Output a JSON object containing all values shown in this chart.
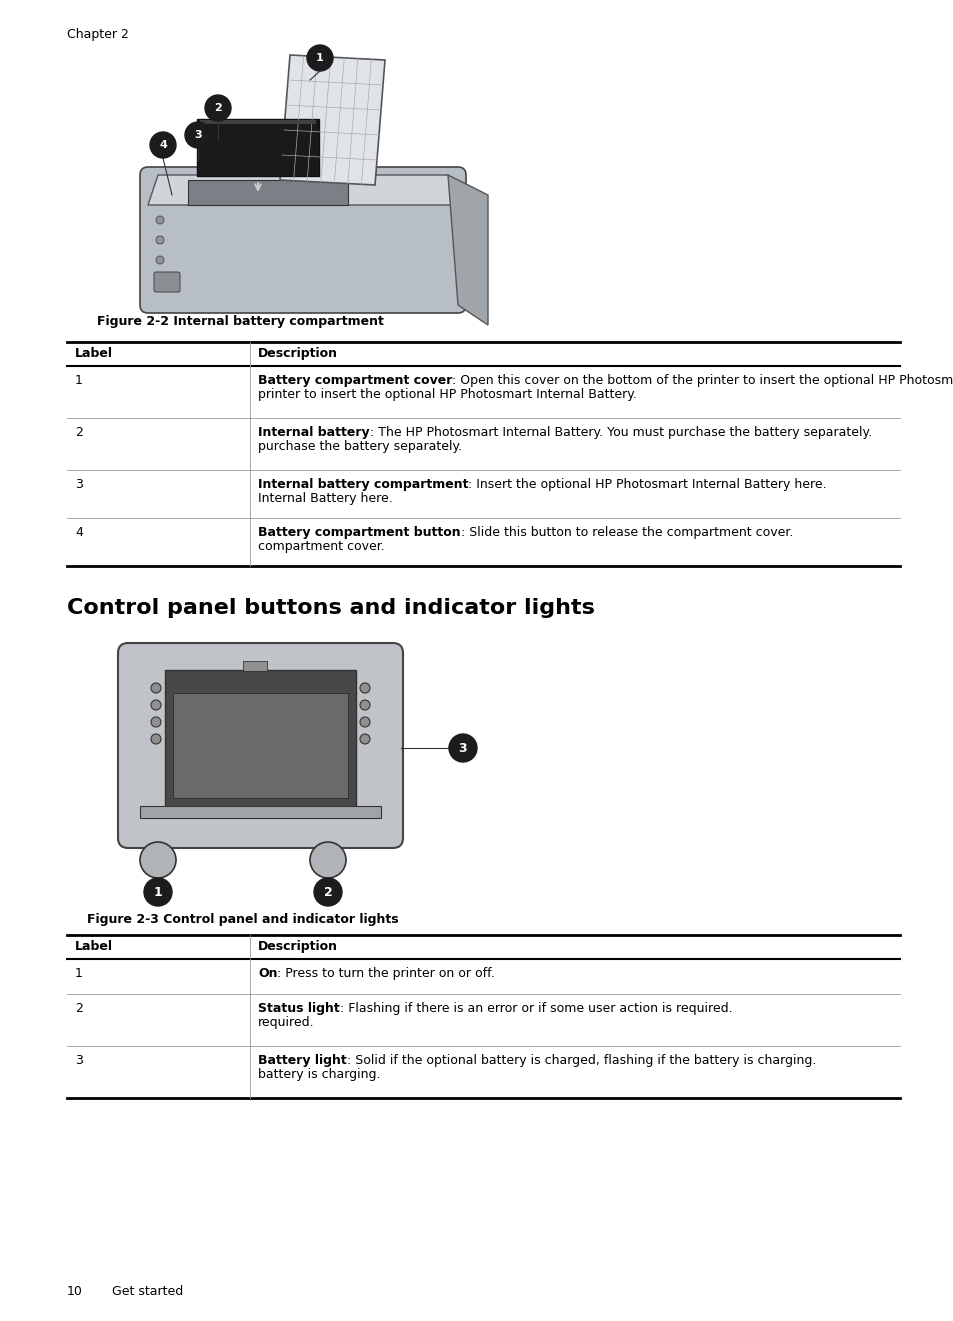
{
  "page_bg": "#ffffff",
  "header_text": "Chapter 2",
  "header_fontsize": 9,
  "figure1_caption": "Figure 2-2 Internal battery compartment",
  "figure1_caption_fontsize": 9,
  "section_title": "Control panel buttons and indicator lights",
  "section_title_fontsize": 16,
  "figure2_caption": "Figure 2-3 Control panel and indicator lights",
  "figure2_caption_fontsize": 9,
  "footer_page": "10",
  "footer_text": "Get started",
  "footer_fontsize": 9,
  "table1": {
    "header": [
      "Label",
      "Description"
    ],
    "rows": [
      {
        "label": "1",
        "bold": "Battery compartment cover",
        "rest": ": Open this cover on the bottom of the printer to insert the optional HP Photosmart Internal Battery.",
        "lines": [
          "Battery compartment cover: Open this cover on the bottom of the",
          "printer to insert the optional HP Photosmart Internal Battery."
        ]
      },
      {
        "label": "2",
        "bold": "Internal battery",
        "rest": ": The HP Photosmart Internal Battery. You must purchase the battery separately.",
        "lines": [
          "Internal battery: The HP Photosmart Internal Battery. You must",
          "purchase the battery separately."
        ]
      },
      {
        "label": "3",
        "bold": "Internal battery compartment",
        "rest": ": Insert the optional HP Photosmart Internal Battery here.",
        "lines": [
          "Internal battery compartment: Insert the optional HP Photosmart",
          "Internal Battery here."
        ]
      },
      {
        "label": "4",
        "bold": "Battery compartment button",
        "rest": ": Slide this button to release the compartment cover.",
        "lines": [
          "Battery compartment button: Slide this button to release the",
          "compartment cover."
        ]
      }
    ]
  },
  "table2": {
    "header": [
      "Label",
      "Description"
    ],
    "rows": [
      {
        "label": "1",
        "bold": "On",
        "rest": ": Press to turn the printer on or off.",
        "lines": [
          "On: Press to turn the printer on or off."
        ]
      },
      {
        "label": "2",
        "bold": "Status light",
        "rest": ": Flashing if there is an error or if some user action is required.",
        "lines": [
          "Status light: Flashing if there is an error or if some user action is",
          "required."
        ]
      },
      {
        "label": "3",
        "bold": "Battery light",
        "rest": ": Solid if the optional battery is charged, flashing if the battery is charging.",
        "lines": [
          "Battery light: Solid if the optional battery is charged, flashing if the",
          "battery is charging."
        ]
      }
    ]
  },
  "text_color": "#000000"
}
